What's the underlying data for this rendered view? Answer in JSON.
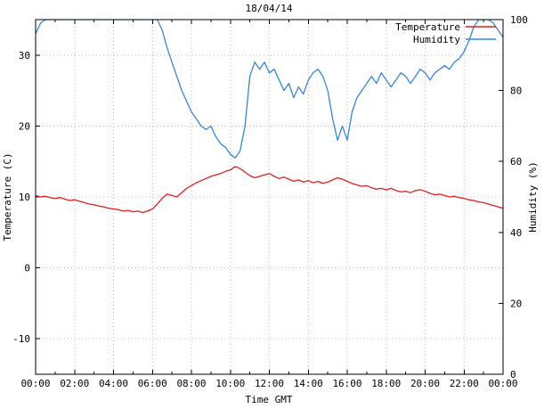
{
  "chart_data": {
    "type": "line",
    "title": "18/04/14",
    "xlabel": "Time GMT",
    "ylabel": "Temperature (C)",
    "y2label": "Humidity (%)",
    "grid": true,
    "legend_position": "top-right-inside",
    "xlim": [
      0,
      24
    ],
    "ylim": [
      -15,
      35
    ],
    "y2lim": [
      0,
      100
    ],
    "x_start": 0,
    "x_step": 0.25,
    "x_ticks": [
      0,
      2,
      4,
      6,
      8,
      10,
      12,
      14,
      16,
      18,
      20,
      22,
      24
    ],
    "x_tick_labels": [
      "00:00",
      "02:00",
      "04:00",
      "06:00",
      "08:00",
      "10:00",
      "12:00",
      "14:00",
      "16:00",
      "18:00",
      "20:00",
      "22:00",
      "00:00"
    ],
    "y_ticks": [
      -10,
      0,
      10,
      20,
      30
    ],
    "y2_ticks": [
      0,
      20,
      40,
      60,
      80,
      100
    ],
    "colors": {
      "temperature": "#e02020",
      "humidity": "#3585e0",
      "grid": "#b8b8b8",
      "border": "#000000"
    },
    "series": [
      {
        "name": "Temperature",
        "axis": "left",
        "color": "#e02020",
        "values": [
          10.2,
          10.0,
          10.1,
          9.9,
          9.8,
          9.9,
          9.7,
          9.5,
          9.6,
          9.4,
          9.2,
          9.0,
          8.9,
          8.7,
          8.6,
          8.4,
          8.3,
          8.2,
          8.0,
          8.1,
          7.9,
          8.0,
          7.8,
          8.0,
          8.3,
          9.0,
          9.8,
          10.4,
          10.2,
          10.0,
          10.6,
          11.2,
          11.6,
          12.0,
          12.3,
          12.6,
          12.9,
          13.1,
          13.3,
          13.6,
          13.8,
          14.3,
          14.0,
          13.5,
          13.0,
          12.7,
          12.9,
          13.1,
          13.3,
          12.9,
          12.6,
          12.8,
          12.5,
          12.2,
          12.4,
          12.1,
          12.3,
          12.0,
          12.2,
          11.9,
          12.1,
          12.4,
          12.7,
          12.5,
          12.2,
          11.9,
          11.7,
          11.5,
          11.6,
          11.3,
          11.1,
          11.2,
          11.0,
          11.2,
          10.9,
          10.7,
          10.8,
          10.6,
          10.9,
          11.0,
          10.8,
          10.5,
          10.3,
          10.4,
          10.2,
          10.0,
          10.1,
          9.9,
          9.8,
          9.6,
          9.5,
          9.3,
          9.2,
          9.0,
          8.8,
          8.6,
          8.4
        ]
      },
      {
        "name": "Humidity",
        "axis": "right",
        "color": "#3585e0",
        "values": [
          96,
          99,
          100,
          100,
          100,
          100,
          100,
          100,
          100,
          100,
          100,
          100,
          100,
          100,
          100,
          100,
          100,
          100,
          100,
          100,
          100,
          100,
          100,
          100,
          100,
          100,
          97,
          92,
          88,
          84,
          80,
          77,
          74,
          72,
          70,
          69,
          70,
          67,
          65,
          64,
          62,
          61,
          63,
          70,
          84,
          88,
          86,
          88,
          85,
          86,
          83,
          80,
          82,
          78,
          81,
          79,
          83,
          85,
          86,
          84,
          80,
          72,
          66,
          70,
          66,
          74,
          78,
          80,
          82,
          84,
          82,
          85,
          83,
          81,
          83,
          85,
          84,
          82,
          84,
          86,
          85,
          83,
          85,
          86,
          87,
          86,
          88,
          89,
          91,
          94,
          98,
          100,
          100,
          100,
          99,
          97,
          95
        ]
      }
    ]
  }
}
